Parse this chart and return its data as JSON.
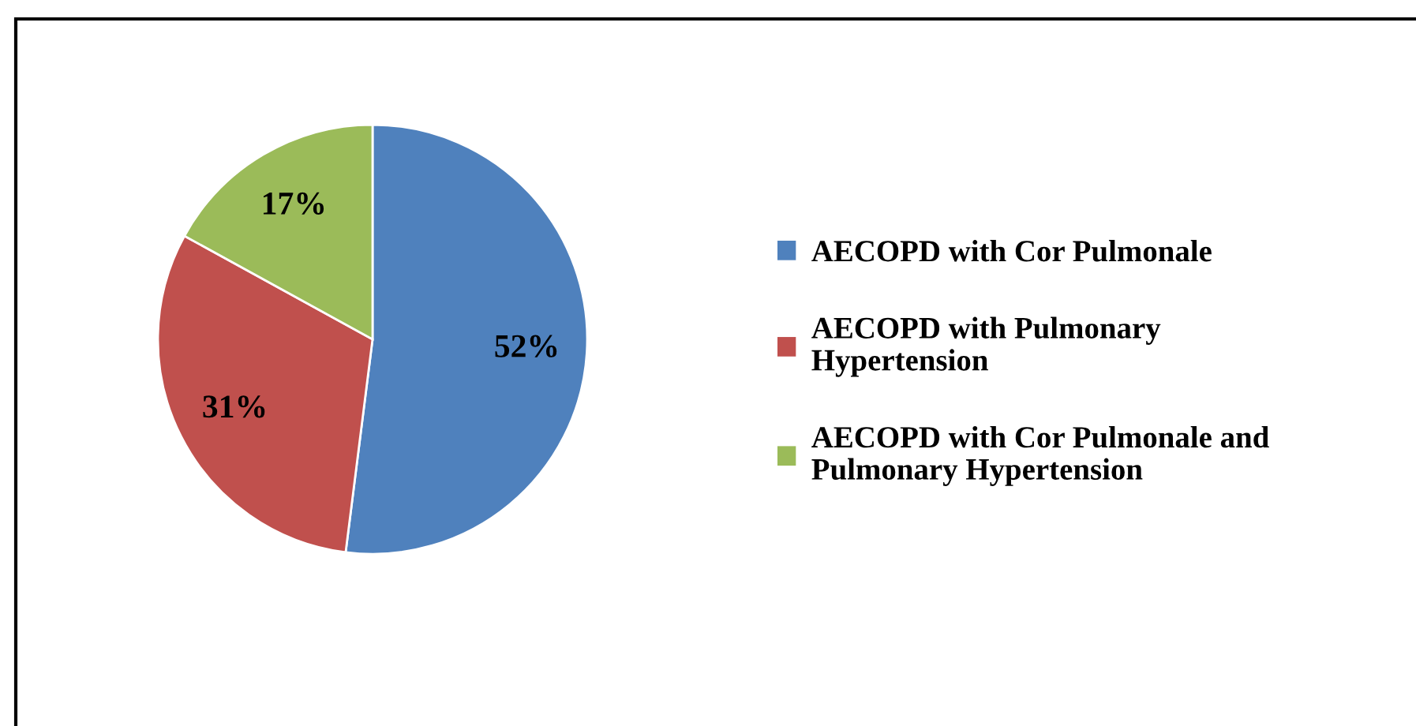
{
  "chart_data": {
    "type": "pie",
    "categories": [
      "AECOPD with Cor Pulmonale",
      "AECOPD with Pulmonary\nHypertension",
      "AECOPD with Cor Pulmonale and\nPulmonary Hypertension"
    ],
    "values": [
      52,
      31,
      17
    ],
    "colors": [
      "#4f81bd",
      "#c0504d",
      "#9bbb59"
    ],
    "value_labels": [
      "52%",
      "31%",
      "17%"
    ],
    "legend": "right"
  }
}
